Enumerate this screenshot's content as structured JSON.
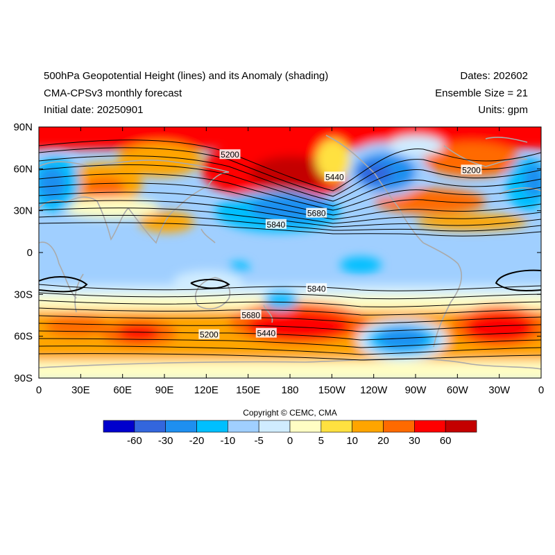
{
  "header": {
    "title": "500hPa Geopotential Height (lines) and its Anomaly (shading)",
    "subtitle": "CMA-CPSv3 monthly forecast",
    "initial_date": "Initial date: 20250901",
    "dates": "Dates: 202602",
    "ensemble": "Ensemble Size = 21",
    "units": "Units: gpm"
  },
  "map": {
    "lat_labels": [
      "90N",
      "60N",
      "30N",
      "0",
      "30S",
      "60S",
      "90S"
    ],
    "lon_labels": [
      "0",
      "30E",
      "60E",
      "90E",
      "120E",
      "150E",
      "180",
      "150W",
      "120W",
      "90W",
      "60W",
      "30W",
      "0"
    ],
    "contour_labels": [
      {
        "text": "5200",
        "lon": 137,
        "lat": 70
      },
      {
        "text": "5440",
        "lon": 212,
        "lat": 54
      },
      {
        "text": "5680",
        "lon": 199,
        "lat": 28
      },
      {
        "text": "5840",
        "lon": 170,
        "lat": 20
      },
      {
        "text": "5200",
        "lon": 310,
        "lat": 59
      },
      {
        "text": "5840",
        "lon": 199,
        "lat": -26
      },
      {
        "text": "5680",
        "lon": 152,
        "lat": -45
      },
      {
        "text": "5440",
        "lon": 163,
        "lat": -58
      },
      {
        "text": "5200",
        "lon": 122,
        "lat": -59
      }
    ]
  },
  "colorbar": {
    "labels": [
      "-60",
      "-30",
      "-20",
      "-10",
      "-5",
      "0",
      "5",
      "10",
      "20",
      "30",
      "60"
    ],
    "colors": [
      "#0000cd",
      "#3366dd",
      "#1e8ff0",
      "#00bfff",
      "#a0cfff",
      "#d0ecff",
      "#fffec4",
      "#ffe140",
      "#ffa500",
      "#ff6a00",
      "#ff0000",
      "#c40000"
    ]
  },
  "copyright": "Copyright © CEMC, CMA",
  "colors": {
    "background_anomaly": "#a0cfff",
    "contour": "#000000",
    "coastline": "#aaaaaa"
  }
}
